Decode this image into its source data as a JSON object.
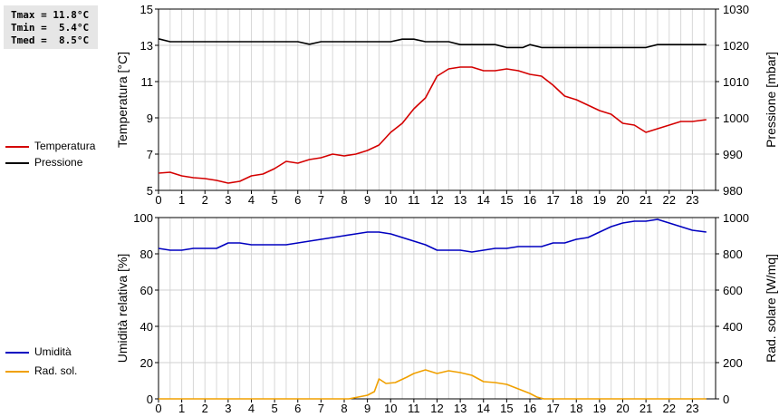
{
  "stats": {
    "tmax": "Tmax = 11.8°C",
    "tmin": "Tmin =  5.4°C",
    "tmed": "Tmed =  8.5°C"
  },
  "legend_top": [
    {
      "label": "Temperatura",
      "color": "#d40000"
    },
    {
      "label": "Pressione",
      "color": "#000000"
    }
  ],
  "legend_bottom": [
    {
      "label": "Umidità",
      "color": "#0000c0"
    },
    {
      "label": "Rad. sol.",
      "color": "#f0a000"
    }
  ],
  "chart_data": [
    {
      "type": "line",
      "xlim": [
        0,
        24
      ],
      "x_ticks": [
        0,
        1,
        2,
        3,
        4,
        5,
        6,
        7,
        8,
        9,
        10,
        11,
        12,
        13,
        14,
        15,
        16,
        17,
        18,
        19,
        20,
        21,
        22,
        23
      ],
      "grid": true,
      "left_axis": {
        "label": "Temperatura [°C]",
        "ylim": [
          5,
          15
        ],
        "ticks": [
          5,
          7,
          9,
          11,
          13,
          15
        ]
      },
      "right_axis": {
        "label": "Pressione [mbar]",
        "ylim": [
          980,
          1030
        ],
        "ticks": [
          980,
          990,
          1000,
          1010,
          1020,
          1030
        ]
      },
      "series": [
        {
          "name": "Temperatura",
          "axis": "left",
          "color": "#d40000",
          "points": [
            [
              0,
              5.95
            ],
            [
              0.5,
              6.0
            ],
            [
              1,
              5.8
            ],
            [
              1.5,
              5.7
            ],
            [
              2,
              5.65
            ],
            [
              2.5,
              5.55
            ],
            [
              3,
              5.4
            ],
            [
              3.5,
              5.5
            ],
            [
              4,
              5.8
            ],
            [
              4.5,
              5.9
            ],
            [
              5,
              6.2
            ],
            [
              5.5,
              6.6
            ],
            [
              6,
              6.5
            ],
            [
              6.5,
              6.7
            ],
            [
              7,
              6.8
            ],
            [
              7.5,
              7.0
            ],
            [
              8,
              6.9
            ],
            [
              8.5,
              7.0
            ],
            [
              9,
              7.2
            ],
            [
              9.5,
              7.5
            ],
            [
              10,
              8.2
            ],
            [
              10.5,
              8.7
            ],
            [
              11,
              9.5
            ],
            [
              11.5,
              10.1
            ],
            [
              12,
              11.3
            ],
            [
              12.5,
              11.7
            ],
            [
              13,
              11.8
            ],
            [
              13.5,
              11.8
            ],
            [
              14,
              11.6
            ],
            [
              14.5,
              11.6
            ],
            [
              15,
              11.7
            ],
            [
              15.5,
              11.6
            ],
            [
              16,
              11.4
            ],
            [
              16.5,
              11.3
            ],
            [
              17,
              10.8
            ],
            [
              17.5,
              10.2
            ],
            [
              18,
              10.0
            ],
            [
              18.5,
              9.7
            ],
            [
              19,
              9.4
            ],
            [
              19.5,
              9.2
            ],
            [
              20,
              8.7
            ],
            [
              20.5,
              8.6
            ],
            [
              21,
              8.2
            ],
            [
              21.5,
              8.4
            ],
            [
              22,
              8.6
            ],
            [
              22.5,
              8.8
            ],
            [
              23,
              8.8
            ],
            [
              23.6,
              8.9
            ]
          ]
        },
        {
          "name": "Pressione",
          "axis": "right",
          "color": "#000000",
          "points": [
            [
              0,
              1021.8
            ],
            [
              0.5,
              1021
            ],
            [
              6,
              1021
            ],
            [
              6.5,
              1020.3
            ],
            [
              7,
              1021
            ],
            [
              10,
              1021
            ],
            [
              10.5,
              1021.7
            ],
            [
              11,
              1021.7
            ],
            [
              11.5,
              1021
            ],
            [
              12.5,
              1021
            ],
            [
              13,
              1020.2
            ],
            [
              14.5,
              1020.2
            ],
            [
              15,
              1019.4
            ],
            [
              15.7,
              1019.4
            ],
            [
              16,
              1020.2
            ],
            [
              16.5,
              1019.4
            ],
            [
              21,
              1019.4
            ],
            [
              21.5,
              1020.2
            ],
            [
              23.6,
              1020.2
            ]
          ]
        }
      ]
    },
    {
      "type": "line",
      "xlim": [
        0,
        24
      ],
      "x_ticks": [
        0,
        1,
        2,
        3,
        4,
        5,
        6,
        7,
        8,
        9,
        10,
        11,
        12,
        13,
        14,
        15,
        16,
        17,
        18,
        19,
        20,
        21,
        22,
        23
      ],
      "grid": true,
      "left_axis": {
        "label": "Umidità relativa [%]",
        "ylim": [
          0,
          100
        ],
        "ticks": [
          0,
          20,
          40,
          60,
          80,
          100
        ]
      },
      "right_axis": {
        "label": "Rad. solare [W/mq]",
        "ylim": [
          0,
          1000
        ],
        "ticks": [
          0,
          200,
          400,
          600,
          800,
          1000
        ]
      },
      "series": [
        {
          "name": "Umidità",
          "axis": "left",
          "color": "#0000c0",
          "points": [
            [
              0,
              83
            ],
            [
              0.5,
              82
            ],
            [
              1,
              82
            ],
            [
              1.5,
              83
            ],
            [
              2,
              83
            ],
            [
              2.5,
              83
            ],
            [
              3,
              86
            ],
            [
              3.5,
              86
            ],
            [
              4,
              85
            ],
            [
              4.5,
              85
            ],
            [
              5,
              85
            ],
            [
              5.5,
              85
            ],
            [
              6,
              86
            ],
            [
              6.5,
              87
            ],
            [
              7,
              88
            ],
            [
              7.5,
              89
            ],
            [
              8,
              90
            ],
            [
              8.5,
              91
            ],
            [
              9,
              92
            ],
            [
              9.5,
              92
            ],
            [
              10,
              91
            ],
            [
              10.5,
              89
            ],
            [
              11,
              87
            ],
            [
              11.5,
              85
            ],
            [
              12,
              82
            ],
            [
              12.5,
              82
            ],
            [
              13,
              82
            ],
            [
              13.5,
              81
            ],
            [
              14,
              82
            ],
            [
              14.5,
              83
            ],
            [
              15,
              83
            ],
            [
              15.5,
              84
            ],
            [
              16,
              84
            ],
            [
              16.5,
              84
            ],
            [
              17,
              86
            ],
            [
              17.5,
              86
            ],
            [
              18,
              88
            ],
            [
              18.5,
              89
            ],
            [
              19,
              92
            ],
            [
              19.5,
              95
            ],
            [
              20,
              97
            ],
            [
              20.5,
              98
            ],
            [
              21,
              98
            ],
            [
              21.5,
              99
            ],
            [
              22,
              97
            ],
            [
              22.5,
              95
            ],
            [
              23,
              93
            ],
            [
              23.6,
              92
            ]
          ]
        },
        {
          "name": "Rad. sol.",
          "axis": "right",
          "color": "#f0a000",
          "points": [
            [
              0,
              0
            ],
            [
              8.2,
              0
            ],
            [
              8.6,
              10
            ],
            [
              9,
              20
            ],
            [
              9.3,
              40
            ],
            [
              9.5,
              110
            ],
            [
              9.8,
              85
            ],
            [
              10.2,
              90
            ],
            [
              10.7,
              120
            ],
            [
              11,
              140
            ],
            [
              11.5,
              160
            ],
            [
              12,
              140
            ],
            [
              12.5,
              155
            ],
            [
              13,
              145
            ],
            [
              13.5,
              130
            ],
            [
              14,
              95
            ],
            [
              14.5,
              90
            ],
            [
              15,
              80
            ],
            [
              15.5,
              55
            ],
            [
              16,
              30
            ],
            [
              16.3,
              10
            ],
            [
              16.6,
              0
            ],
            [
              23.6,
              0
            ]
          ]
        }
      ]
    }
  ]
}
